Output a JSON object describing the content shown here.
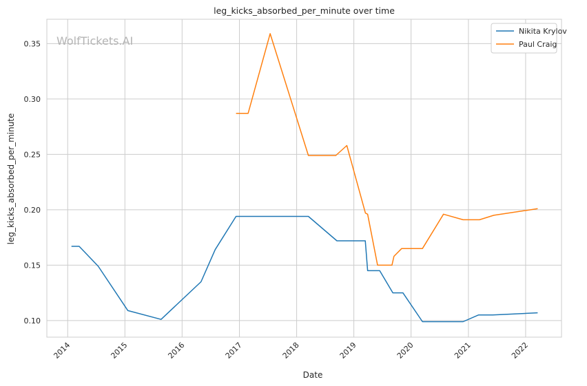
{
  "chart_data": {
    "type": "line",
    "title": "leg_kicks_absorbed_per_minute over time",
    "xlabel": "Date",
    "ylabel": "leg_kicks_absorbed_per_minute",
    "watermark": "WolfTickets.AI",
    "x_ticks": [
      "2014",
      "2015",
      "2016",
      "2017",
      "2018",
      "2019",
      "2020",
      "2021",
      "2022"
    ],
    "y_ticks": [
      "0.10",
      "0.15",
      "0.20",
      "0.25",
      "0.30",
      "0.35"
    ],
    "xlim": [
      "2013-08-21",
      "2022-08-18"
    ],
    "ylim": [
      0.085,
      0.372
    ],
    "grid": true,
    "legend_position": "top-right",
    "series": [
      {
        "name": "Nikita Krylov",
        "color": "#1f77b4",
        "points": [
          [
            "2014-01-25",
            0.167
          ],
          [
            "2014-03-15",
            0.167
          ],
          [
            "2014-07-15",
            0.149
          ],
          [
            "2015-01-20",
            0.109
          ],
          [
            "2015-08-20",
            0.101
          ],
          [
            "2016-05-01",
            0.135
          ],
          [
            "2016-07-30",
            0.164
          ],
          [
            "2016-12-10",
            0.194
          ],
          [
            "2018-03-17",
            0.194
          ],
          [
            "2018-09-15",
            0.172
          ],
          [
            "2019-03-15",
            0.172
          ],
          [
            "2019-03-30",
            0.145
          ],
          [
            "2019-06-15",
            0.145
          ],
          [
            "2019-09-07",
            0.125
          ],
          [
            "2019-11-10",
            0.125
          ],
          [
            "2020-03-14",
            0.099
          ],
          [
            "2020-11-28",
            0.099
          ],
          [
            "2021-03-06",
            0.105
          ],
          [
            "2021-06-05",
            0.105
          ],
          [
            "2022-03-19",
            0.107
          ]
        ]
      },
      {
        "name": "Paul Craig",
        "color": "#ff7f0e",
        "points": [
          [
            "2016-12-10",
            0.287
          ],
          [
            "2017-02-25",
            0.287
          ],
          [
            "2017-07-16",
            0.359
          ],
          [
            "2018-03-17",
            0.249
          ],
          [
            "2018-09-08",
            0.249
          ],
          [
            "2018-11-17",
            0.258
          ],
          [
            "2019-03-16",
            0.197
          ],
          [
            "2019-03-30",
            0.196
          ],
          [
            "2019-06-01",
            0.15
          ],
          [
            "2019-09-01",
            0.15
          ],
          [
            "2019-09-14",
            0.158
          ],
          [
            "2019-11-02",
            0.165
          ],
          [
            "2020-03-14",
            0.165
          ],
          [
            "2020-07-26",
            0.196
          ],
          [
            "2020-11-28",
            0.191
          ],
          [
            "2021-03-13",
            0.191
          ],
          [
            "2021-06-12",
            0.195
          ],
          [
            "2022-03-19",
            0.201
          ]
        ]
      }
    ]
  }
}
